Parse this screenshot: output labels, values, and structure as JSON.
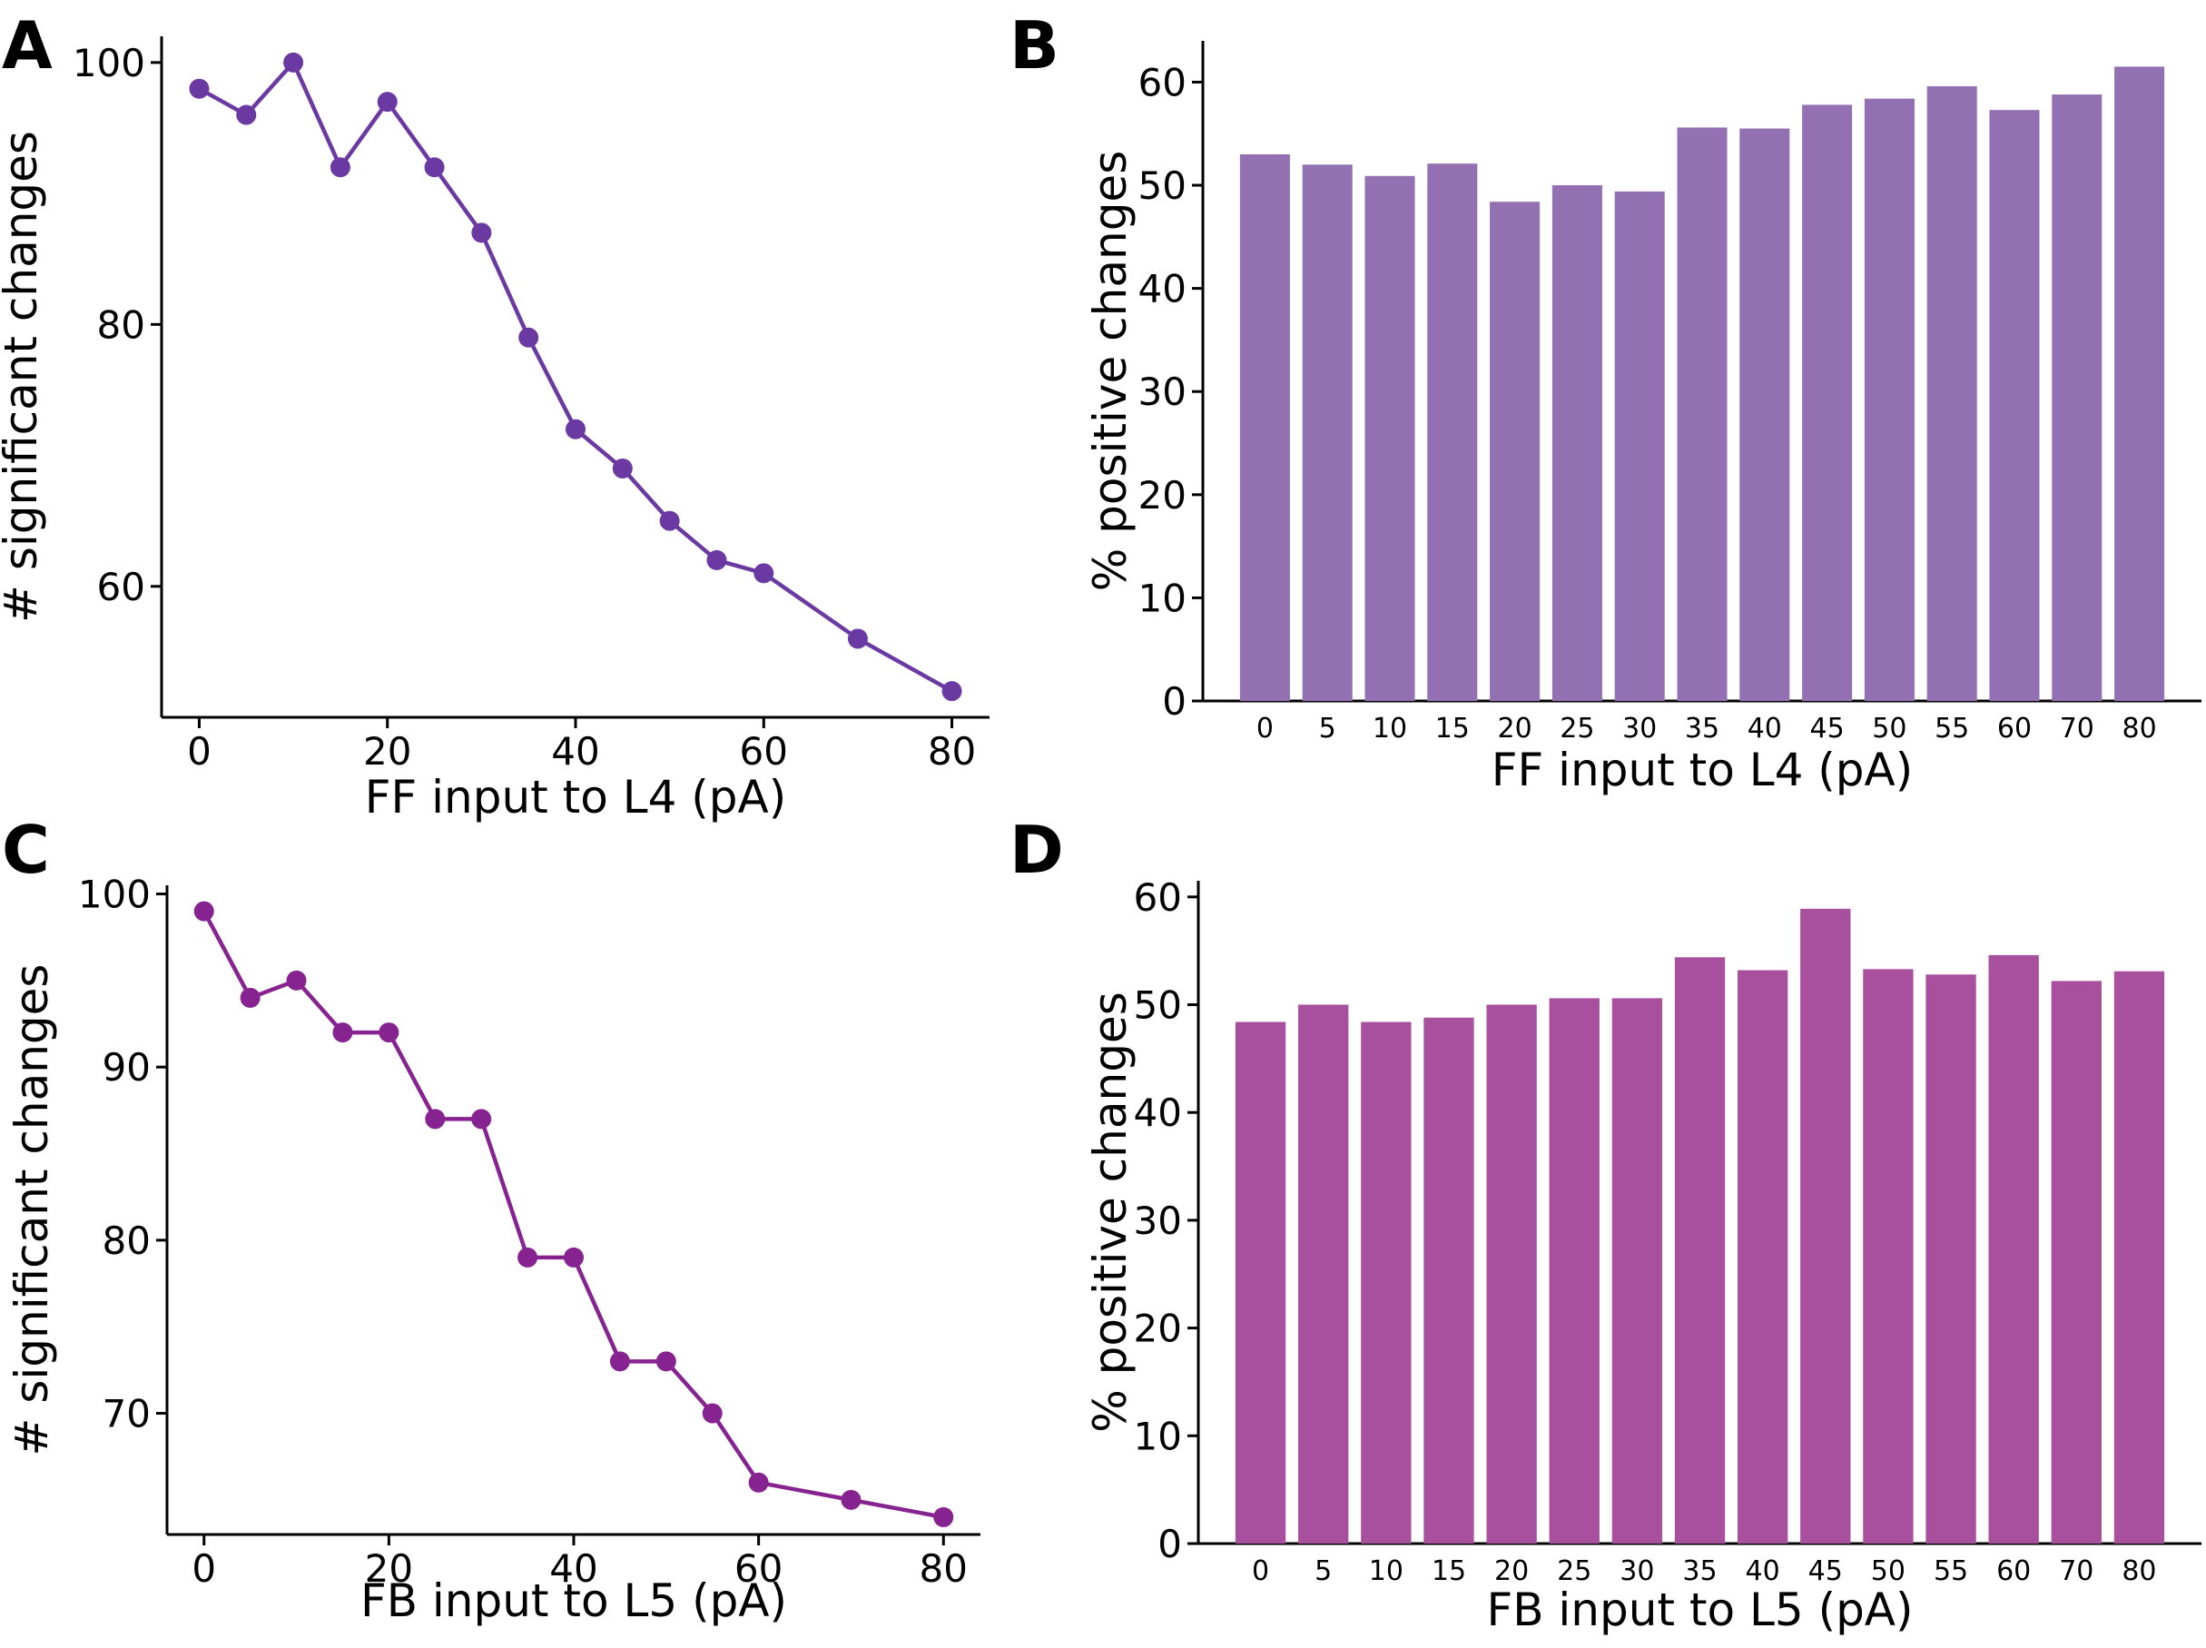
{
  "panels": [
    {
      "letter": "A"
    },
    {
      "letter": "B"
    },
    {
      "letter": "C"
    },
    {
      "letter": "D"
    }
  ],
  "chart_data": [
    {
      "panel": "A",
      "type": "line",
      "x": [
        0,
        5,
        10,
        15,
        20,
        25,
        30,
        35,
        40,
        45,
        50,
        55,
        60,
        70,
        80
      ],
      "y": [
        98,
        96,
        100,
        92,
        97,
        92,
        87,
        79,
        72,
        69,
        65,
        62,
        61,
        56,
        52
      ],
      "xlabel": "FF input to L4 (pA)",
      "ylabel": "# significant changes",
      "xlim": [
        -4,
        84
      ],
      "ylim": [
        50,
        102
      ],
      "xticks": [
        0,
        20,
        40,
        60,
        80
      ],
      "yticks": [
        60,
        80,
        100
      ],
      "color": "#6a3aa2",
      "grid": false
    },
    {
      "panel": "B",
      "type": "bar",
      "categories": [
        "0",
        "5",
        "10",
        "15",
        "20",
        "25",
        "30",
        "35",
        "40",
        "45",
        "50",
        "55",
        "60",
        "70",
        "80"
      ],
      "values": [
        53.0,
        52.0,
        50.9,
        52.1,
        48.4,
        50.0,
        49.4,
        55.6,
        55.5,
        57.8,
        58.4,
        59.6,
        57.3,
        58.8,
        61.5
      ],
      "xlabel": "FF input to L4 (pA)",
      "ylabel": "% positive changes",
      "ylim": [
        0,
        64
      ],
      "yticks": [
        0,
        10,
        20,
        30,
        40,
        50,
        60
      ],
      "color": "#9370b1",
      "grid": false
    },
    {
      "panel": "C",
      "type": "line",
      "x": [
        0,
        5,
        10,
        15,
        20,
        25,
        30,
        35,
        40,
        45,
        50,
        55,
        60,
        70,
        80
      ],
      "y": [
        99,
        94,
        95,
        92,
        92,
        87,
        87,
        79,
        79,
        73,
        73,
        70,
        66,
        65,
        64
      ],
      "xlabel": "FB input to L5 (pA)",
      "ylabel": "# significant changes",
      "xlim": [
        -4,
        84
      ],
      "ylim": [
        63,
        100.5
      ],
      "xticks": [
        0,
        20,
        40,
        60,
        80
      ],
      "yticks": [
        70,
        80,
        90,
        100
      ],
      "color": "#862390",
      "grid": false
    },
    {
      "panel": "D",
      "type": "bar",
      "categories": [
        "0",
        "5",
        "10",
        "15",
        "20",
        "25",
        "30",
        "35",
        "40",
        "45",
        "50",
        "55",
        "60",
        "70",
        "80"
      ],
      "values": [
        48.4,
        50.0,
        48.4,
        48.8,
        50.0,
        50.6,
        50.6,
        54.4,
        53.2,
        58.9,
        53.3,
        52.8,
        54.6,
        52.2,
        53.1
      ],
      "xlabel": "FB input to L5 (pA)",
      "ylabel": "% positive changes",
      "ylim": [
        0,
        61.5
      ],
      "yticks": [
        0,
        10,
        20,
        30,
        40,
        50,
        60
      ],
      "color": "#a84f9e",
      "grid": false
    }
  ]
}
